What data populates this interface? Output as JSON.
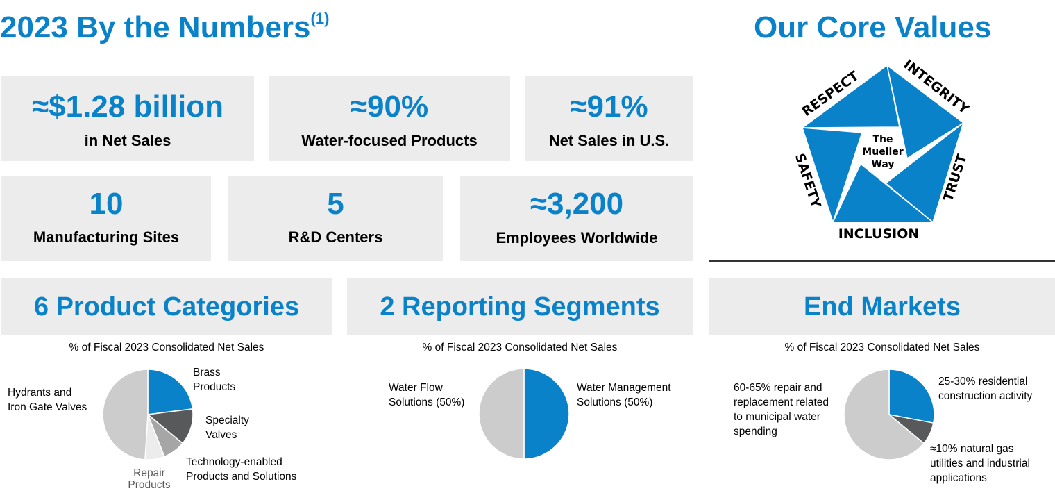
{
  "left_title": {
    "text": "2023 By the Numbers",
    "footnote": "(1)"
  },
  "right_title": "Our Core Values",
  "stats": [
    {
      "value": "≈$1.28 billion",
      "label": "in Net Sales"
    },
    {
      "value": "≈90%",
      "label": "Water-focused Products"
    },
    {
      "value": "≈91%",
      "label": "Net Sales in U.S."
    },
    {
      "value": "10",
      "label": "Manufacturing Sites"
    },
    {
      "value": "5",
      "label": "R&D Centers"
    },
    {
      "value": "≈3,200",
      "label": "Employees Worldwide"
    }
  ],
  "core_values": {
    "center": [
      "The",
      "Mueller",
      "Way"
    ],
    "values": [
      "RESPECT",
      "INTEGRITY",
      "TRUST",
      "INCLUSION",
      "SAFETY"
    ],
    "colors": {
      "blue": "#0a82c9"
    }
  },
  "sections": [
    {
      "header": "6 Product Categories",
      "subtitle": "% of Fiscal 2023 Consolidated Net Sales"
    },
    {
      "header": "2 Reporting Segments",
      "subtitle": "% of Fiscal 2023 Consolidated Net Sales"
    },
    {
      "header": "End Markets",
      "subtitle": "% of Fiscal 2023 Consolidated Net Sales"
    }
  ],
  "chart_data": [
    {
      "type": "pie",
      "title": "6 Product Categories",
      "labels": [
        "Brass Products",
        "Specialty Valves",
        "Technology-enabled Products and Solutions",
        "Repair Products",
        "Hydrants and Iron Gate Valves"
      ],
      "values": [
        23,
        13,
        8,
        7,
        49
      ],
      "colors": [
        "#0a82c9",
        "#58595b",
        "#a6a6a6",
        "#ececec",
        "#cccccc"
      ],
      "display_labels": [
        "Brass\nProducts",
        "Specialty\nValves",
        "Technology-enabled\nProducts and Solutions",
        "Repair\nProducts",
        "Hydrants and\nIron Gate Valves"
      ]
    },
    {
      "type": "pie",
      "title": "2 Reporting Segments",
      "labels": [
        "Water Management Solutions (50%)",
        "Water Flow Solutions (50%)"
      ],
      "values": [
        50,
        50
      ],
      "colors": [
        "#0a82c9",
        "#cccccc"
      ],
      "display_labels": [
        "Water Management\nSolutions (50%)",
        "Water Flow\nSolutions (50%)"
      ]
    },
    {
      "type": "pie",
      "title": "End Markets",
      "labels": [
        "25-30% residential construction activity",
        "≈10% natural gas utilities and industrial applications",
        "60-65% repair and replacement related to municipal water spending"
      ],
      "values": [
        28,
        8,
        64
      ],
      "colors": [
        "#0a82c9",
        "#58595b",
        "#cccccc"
      ],
      "display_labels": [
        "25-30% residential\nconstruction activity",
        "≈10% natural gas\nutilities and industrial\napplications",
        "60-65% repair and\nreplacement related\nto municipal water\nspending"
      ]
    }
  ]
}
